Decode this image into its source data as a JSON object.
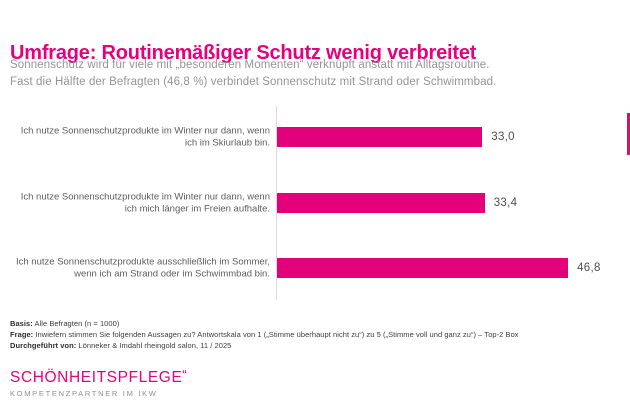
{
  "page": {
    "title": "Umfrage: Routinemäßiger Schutz wenig verbreitet",
    "subtitle_line1": "Sonnenschutz wird für viele mit „besonderen Momenten“ verknüpft anstatt mit Alltagsroutine.",
    "subtitle_line2": "Fast die Hälfte der Befragten (46,8 %) verbindet Sonnenschutz mit Strand oder Schwimmbad."
  },
  "chart_data": {
    "type": "bar",
    "orientation": "horizontal",
    "categories": [
      "Ich nutze Sonnenschutzprodukte im Winter nur dann, wenn ich im Skiurlaub bin.",
      "Ich nutze Sonnenschutzprodukte im Winter nur dann, wenn ich mich länger im Freien aufhalte.",
      "Ich nutze Sonnenschutzprodukte ausschließlich im Sommer, wenn ich am Strand oder im Schwimmbad bin."
    ],
    "values": [
      33.0,
      33.4,
      46.8
    ],
    "value_labels": [
      "33,0",
      "33,4",
      "46,8"
    ],
    "xlim": [
      0,
      50
    ],
    "grid": false,
    "legend": "none",
    "bar_color": "#e2017b",
    "title": "",
    "xlabel": "",
    "ylabel": ""
  },
  "footnotes": [
    {
      "prefix": "Basis:",
      "text": " Alle Befragten (n = 1000)"
    },
    {
      "prefix": "Frage:",
      "text": " Inwiefern stimmen Sie folgenden Aussagen zu? Antwortskala von 1 („Stimme überhaupt nicht zu“) zu 5  („Stimme voll und ganz zu“) – Top-2 Box"
    },
    {
      "prefix": "Durchgeführt von:",
      "text": " Lönneker & Imdahl rheingold salon, 11 / 2025"
    }
  ],
  "logo": {
    "main": "SCHÖNHEITSPFLEGE",
    "mark": "“",
    "sub": "KOMPETENZPARTNER IM IKW"
  },
  "colors": {
    "accent": "#e2017b",
    "title": "#e5017d",
    "subtitle_gray": "#949494",
    "label_gray": "#5c5c5c",
    "axis_gray": "#dcdcdc"
  }
}
